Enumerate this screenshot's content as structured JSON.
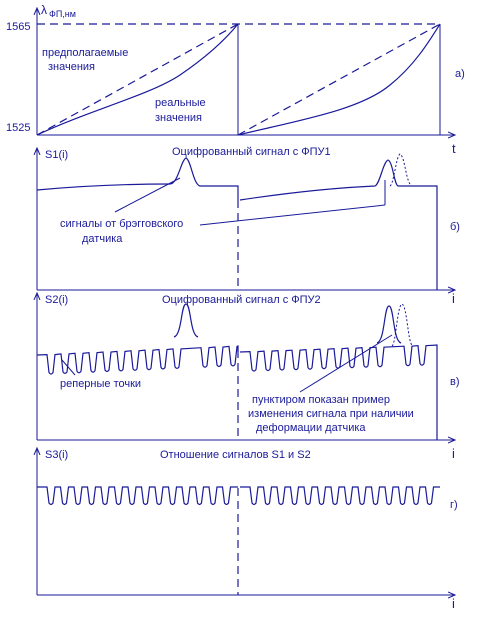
{
  "panel_a": {
    "axis_symbol": "λ",
    "axis_subscript": "ФП,нм",
    "y_top": 1565,
    "y_bottom": 1525,
    "dashed_label": [
      "предполагаемые",
      "значения"
    ],
    "solid_label": [
      "реальные",
      "значения"
    ],
    "tag": "а)",
    "x_axis": "t"
  },
  "panel_b": {
    "axis": "S1(i)",
    "title": "Оцифрованный сигнал с ФПУ1",
    "note": [
      "сигналы от  брэгговского",
      "датчика"
    ],
    "tag": "б)",
    "x_axis": "i"
  },
  "panel_c": {
    "axis": "S2(i)",
    "title": "Оцифрованный сигнал с ФПУ2",
    "note": "реперные точки",
    "note2": [
      "пунктиром показан пример",
      "изменения сигнала при наличии",
      "деформации  датчика"
    ],
    "tag": "в)",
    "x_axis": "i"
  },
  "panel_d": {
    "axis": "S3(i)",
    "title": "Отношение сигналов S1 и S2",
    "tag": "г)",
    "x_axis": "i"
  }
}
